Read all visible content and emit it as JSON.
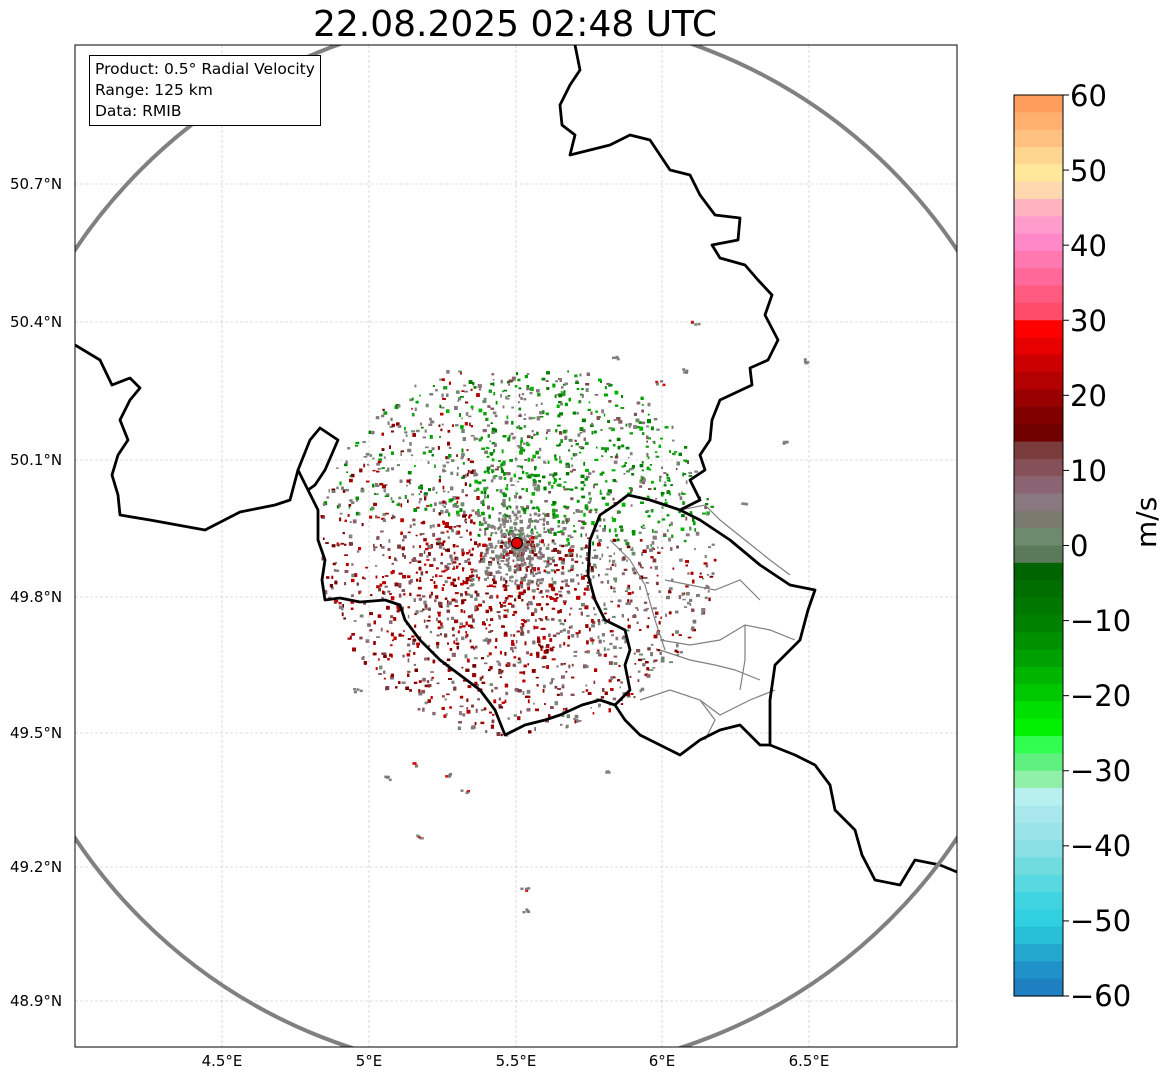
{
  "title": "22.08.2025 02:48 UTC",
  "info": {
    "product": "Product: 0.5° Radial Velocity",
    "range": "Range: 125 km",
    "data": "Data: RMIB"
  },
  "axes": {
    "lat_labels": [
      "50.7°N",
      "50.4°N",
      "50.1°N",
      "49.8°N",
      "49.5°N",
      "49.2°N",
      "48.9°N"
    ],
    "lon_labels": [
      "4.5°E",
      "5°E",
      "5.5°E",
      "6°E",
      "6.5°E"
    ]
  },
  "colorbar": {
    "ticks": [
      "60",
      "50",
      "40",
      "30",
      "20",
      "10",
      "0",
      "−10",
      "−20",
      "−30",
      "−40",
      "−50",
      "−60"
    ],
    "unit": "m/s",
    "min": -60,
    "max": 60
  },
  "colors": {
    "range_ring": "#808080",
    "border": "#000000",
    "admin_border": "#808080",
    "radar_site": "#e00000",
    "grid": "#c0c0c0"
  }
}
